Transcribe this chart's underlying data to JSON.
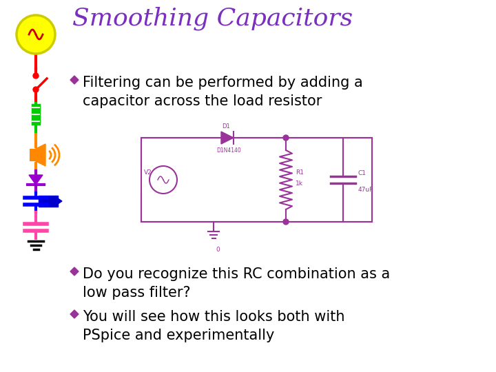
{
  "title": "Smoothing Capacitors",
  "title_color": "#7B2FBE",
  "background_color": "#FFFFFF",
  "bullet_color": "#993399",
  "text_color": "#000000",
  "bullet1": "Filtering can be performed by adding a\ncapacitor across the load resistor",
  "bullet2": "Do you recognize this RC combination as a\nlow pass filter?",
  "bullet3": "You will see how this looks both with\nPSpice and experimentally",
  "circuit_color": "#993399",
  "left_strip": {
    "ac_circle_color": "#FFFF00",
    "ac_circle_edge": "#CCCC00",
    "ac_tilde_color": "#CC0000",
    "wire_color": "#FF0000",
    "switch_color": "#FF0000",
    "resistor_color": "#00CC00",
    "speaker_color": "#FF8800",
    "led_color": "#9900CC",
    "led_wire_color": "#9900CC",
    "blue_cap_color": "#0000FF",
    "blue_blob_color": "#0000CC",
    "pink_cap_color": "#FF44AA",
    "gnd_color": "#000000"
  }
}
